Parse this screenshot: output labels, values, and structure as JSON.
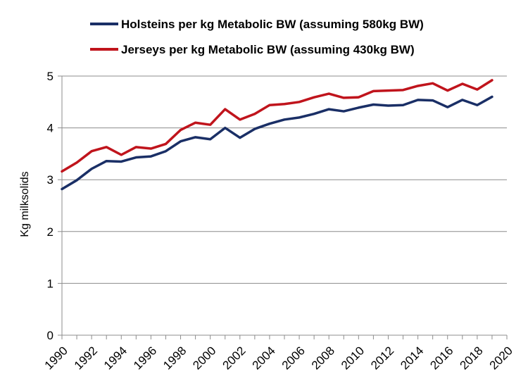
{
  "chart_data": {
    "type": "line",
    "title": "",
    "xlabel": "",
    "ylabel": "Kg milksolids",
    "ylim": [
      0,
      5
    ],
    "xlim": [
      1990,
      2020
    ],
    "x_ticks": [
      "1990",
      "1992",
      "1994",
      "1996",
      "1998",
      "2000",
      "2002",
      "2004",
      "2006",
      "2008",
      "2010",
      "2012",
      "2014",
      "2016",
      "2018",
      "2020"
    ],
    "y_ticks": [
      "0",
      "1",
      "2",
      "3",
      "4",
      "5"
    ],
    "grid": "horizontal",
    "legend_position": "top",
    "x": [
      1990,
      1991,
      1992,
      1993,
      1994,
      1995,
      1996,
      1997,
      1998,
      1999,
      2000,
      2001,
      2002,
      2003,
      2004,
      2005,
      2006,
      2007,
      2008,
      2009,
      2010,
      2011,
      2012,
      2013,
      2014,
      2015,
      2016,
      2017,
      2018,
      2019
    ],
    "series": [
      {
        "name": "Holsteins per kg Metabolic BW (assuming 580kg BW)",
        "color": "#1a2f66",
        "values": [
          2.82,
          2.99,
          3.21,
          3.36,
          3.35,
          3.43,
          3.45,
          3.55,
          3.74,
          3.82,
          3.78,
          4.0,
          3.81,
          3.98,
          4.08,
          4.16,
          4.2,
          4.27,
          4.36,
          4.32,
          4.39,
          4.45,
          4.43,
          4.44,
          4.54,
          4.53,
          4.4,
          4.54,
          4.44,
          4.6
        ]
      },
      {
        "name": "Jerseys per kg Metabolic BW (assuming 430kg BW)",
        "color": "#c0141c",
        "values": [
          3.16,
          3.33,
          3.55,
          3.63,
          3.48,
          3.63,
          3.6,
          3.69,
          3.96,
          4.1,
          4.06,
          4.36,
          4.16,
          4.27,
          4.44,
          4.46,
          4.5,
          4.59,
          4.66,
          4.58,
          4.59,
          4.71,
          4.72,
          4.73,
          4.81,
          4.86,
          4.72,
          4.85,
          4.74,
          4.92
        ]
      }
    ]
  }
}
